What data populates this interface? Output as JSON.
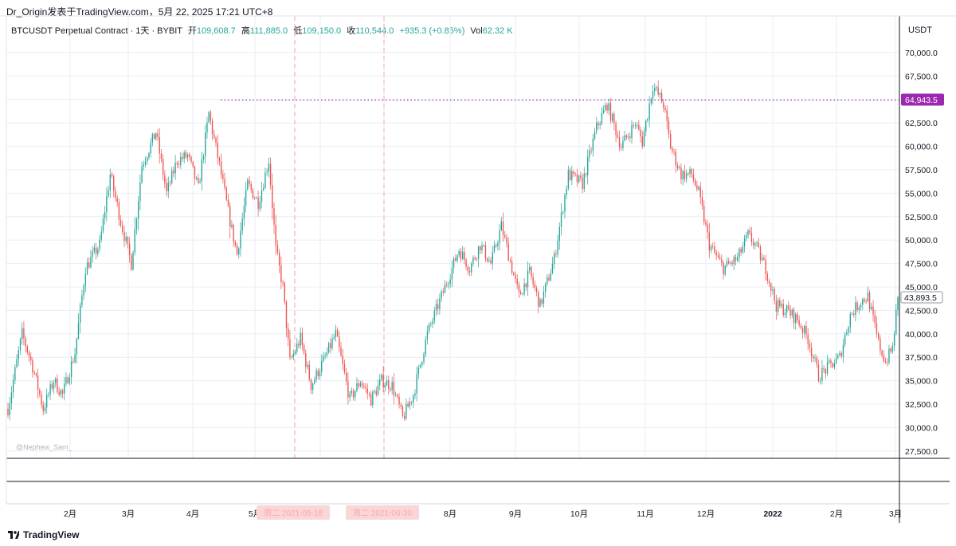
{
  "header": {
    "line": "Dr_Origin发表于TradingView.com，5月 22, 2025 17:21 UTC+8"
  },
  "legend": {
    "symbol": "BTCUSDT Perpetual Contract · 1天 · BYBIT",
    "open_label": "开",
    "open": "109,608.7",
    "high_label": "高",
    "high": "111,885.0",
    "low_label": "低",
    "low": "109,150.0",
    "close_label": "收",
    "close": "110,544.0",
    "change": "+935.3 (+0.85%)",
    "vol_label": "Vol",
    "vol": "62.32 K"
  },
  "axis": {
    "currency": "USDT",
    "price_ticks": [
      "70,000.0",
      "67,500.0",
      "65,000.0",
      "62,500.0",
      "60,000.0",
      "57,500.0",
      "55,000.0",
      "52,500.0",
      "50,000.0",
      "47,500.0",
      "45,000.0",
      "42,500.0",
      "40,000.0",
      "37,500.0",
      "35,000.0",
      "32,500.0",
      "30,000.0",
      "27,500.0"
    ],
    "time_ticks": [
      "2月",
      "3月",
      "4月",
      "5月",
      "6月",
      "7月",
      "8月",
      "9月",
      "10月",
      "11月",
      "12月",
      "2022",
      "2月",
      "3月"
    ],
    "marked_level_label": "64,943.5",
    "current_price_label": "43,893.5",
    "date_badge_1": "周二 2021-05-18",
    "date_badge_2": "周二 2021-06-30"
  },
  "watermark": "@Nephew_Sam_",
  "footer": {
    "brand": "TradingView"
  },
  "colors": {
    "up": "#26a69a",
    "down": "#ef5350",
    "level_line": "#9c27b0",
    "grid": "#e8edf5"
  },
  "chart_data": {
    "type": "candlestick",
    "interval": "1D",
    "ylim": [
      27500,
      72000
    ],
    "marked_level": 64943.5,
    "current_price": 43893.5,
    "months": [
      "2021-02",
      "2021-03",
      "2021-04",
      "2021-05",
      "2021-06",
      "2021-07",
      "2021-08",
      "2021-09",
      "2021-10",
      "2021-11",
      "2021-12",
      "2022-01",
      "2022-02",
      "2022-03"
    ],
    "anchors": [
      [
        0,
        32000
      ],
      [
        8,
        40000
      ],
      [
        14,
        36500
      ],
      [
        20,
        32000
      ],
      [
        26,
        35000
      ],
      [
        31,
        33500
      ],
      [
        38,
        38000
      ],
      [
        44,
        47000
      ],
      [
        52,
        49500
      ],
      [
        58,
        57000
      ],
      [
        64,
        52000
      ],
      [
        70,
        47500
      ],
      [
        76,
        58000
      ],
      [
        84,
        61500
      ],
      [
        90,
        55000
      ],
      [
        96,
        58500
      ],
      [
        102,
        59000
      ],
      [
        108,
        55500
      ],
      [
        114,
        63500
      ],
      [
        120,
        58000
      ],
      [
        126,
        52000
      ],
      [
        130,
        48500
      ],
      [
        136,
        56000
      ],
      [
        142,
        54000
      ],
      [
        148,
        58500
      ],
      [
        152,
        49000
      ],
      [
        156,
        45000
      ],
      [
        160,
        37000
      ],
      [
        166,
        39500
      ],
      [
        172,
        34500
      ],
      [
        180,
        37500
      ],
      [
        186,
        40000
      ],
      [
        194,
        33000
      ],
      [
        200,
        35000
      ],
      [
        206,
        33000
      ],
      [
        212,
        35000
      ],
      [
        218,
        34500
      ],
      [
        224,
        31000
      ],
      [
        230,
        33500
      ],
      [
        238,
        40000
      ],
      [
        248,
        45000
      ],
      [
        256,
        49000
      ],
      [
        262,
        47000
      ],
      [
        268,
        49500
      ],
      [
        274,
        47500
      ],
      [
        280,
        51500
      ],
      [
        286,
        47000
      ],
      [
        290,
        44000
      ],
      [
        296,
        46500
      ],
      [
        302,
        43000
      ],
      [
        310,
        48000
      ],
      [
        318,
        57000
      ],
      [
        326,
        56000
      ],
      [
        334,
        62000
      ],
      [
        340,
        64500
      ],
      [
        348,
        60000
      ],
      [
        356,
        62500
      ],
      [
        360,
        60500
      ],
      [
        366,
        66500
      ],
      [
        372,
        64500
      ],
      [
        376,
        60000
      ],
      [
        382,
        57000
      ],
      [
        388,
        57000
      ],
      [
        392,
        55000
      ],
      [
        398,
        49500
      ],
      [
        406,
        47000
      ],
      [
        414,
        48000
      ],
      [
        420,
        50500
      ],
      [
        424,
        49500
      ],
      [
        430,
        47000
      ],
      [
        436,
        43000
      ],
      [
        442,
        42500
      ],
      [
        448,
        41500
      ],
      [
        454,
        39500
      ],
      [
        460,
        35500
      ],
      [
        466,
        36500
      ],
      [
        472,
        37500
      ],
      [
        478,
        42000
      ],
      [
        484,
        43500
      ],
      [
        488,
        44000
      ],
      [
        494,
        39000
      ],
      [
        498,
        37000
      ],
      [
        502,
        38500
      ],
      [
        505,
        43900
      ]
    ]
  }
}
